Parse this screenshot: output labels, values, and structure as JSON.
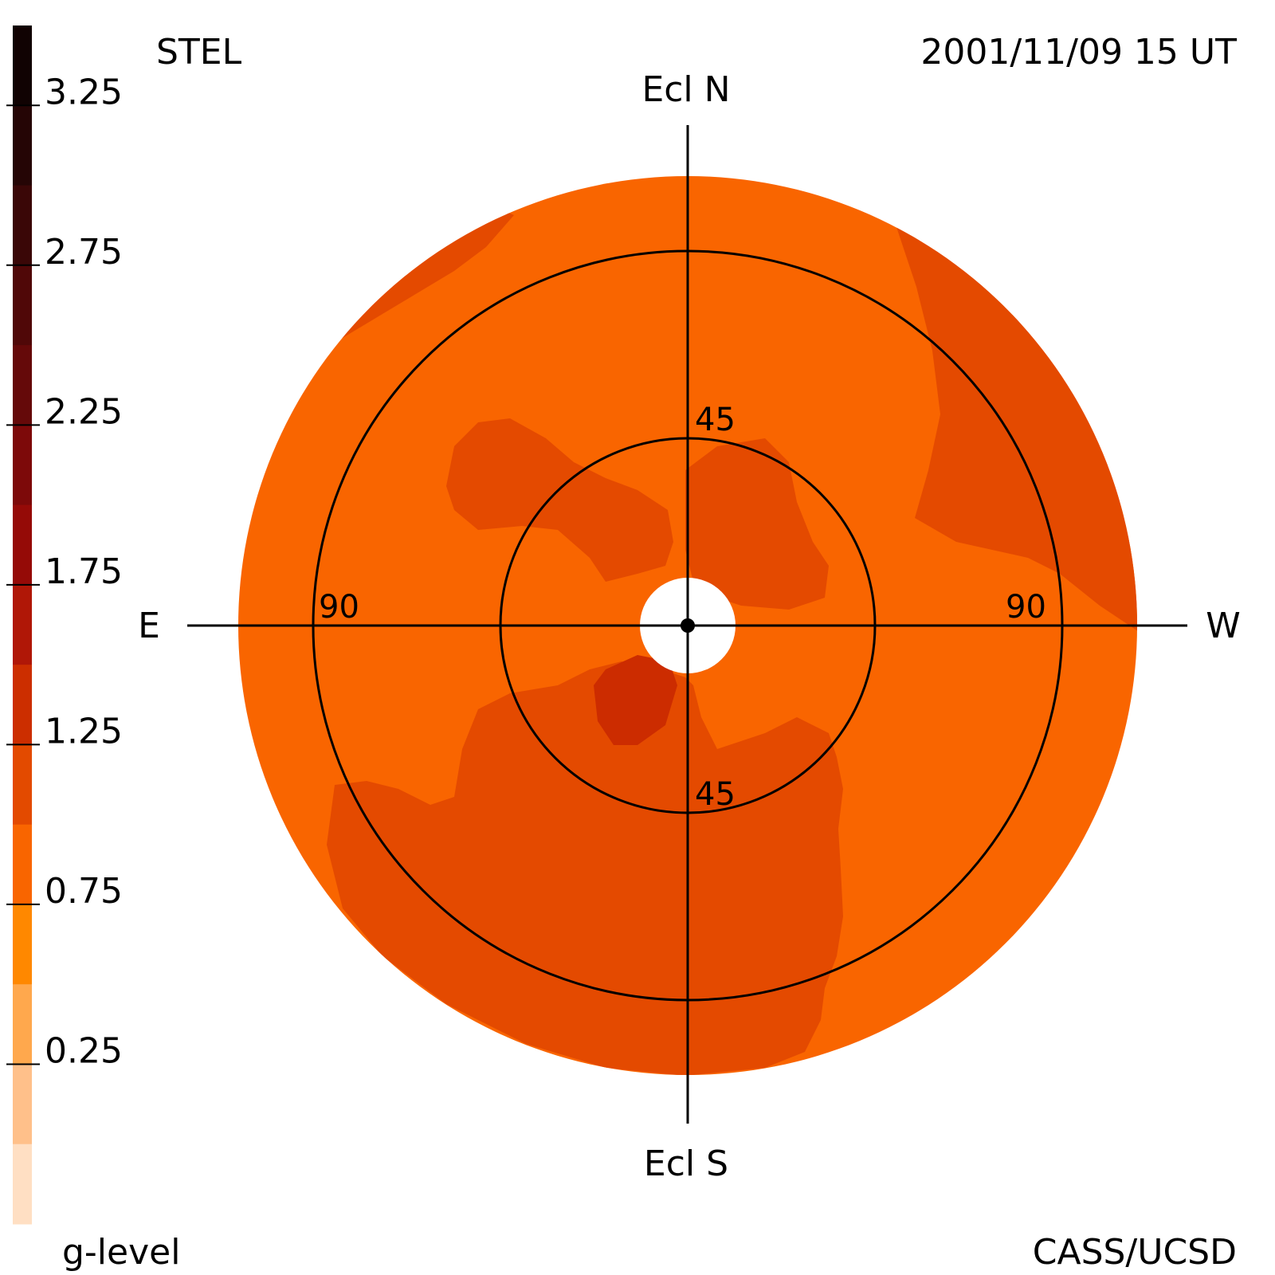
{
  "header": {
    "left_label": "STEL",
    "right_label": "2001/11/09 15 UT"
  },
  "footer": {
    "left_label": "g-level",
    "right_label": "CASS/UCSD"
  },
  "directions": {
    "north": "Ecl N",
    "south": "Ecl S",
    "east": "E",
    "west": "W"
  },
  "ring_labels": {
    "inner_top": "45",
    "inner_bottom": "45",
    "outer_left": "90",
    "outer_right": "90"
  },
  "colors": {
    "disk_base": "#f96500",
    "region_mid": "#e44a00",
    "region_high": "#cc2c00",
    "center_hole": "#ffffff",
    "lines": "#000000"
  },
  "chart_data": {
    "type": "heatmap",
    "projection": "sky map around the sun, ecliptic coordinates",
    "colorbar": {
      "title": "g-level",
      "range": [
        0,
        3.5
      ],
      "tick_labels": [
        "3.25",
        "2.75",
        "2.25",
        "1.75",
        "1.25",
        "0.75",
        "0.25"
      ],
      "tick_values": [
        3.25,
        2.75,
        2.25,
        1.75,
        1.25,
        0.75,
        0.25
      ],
      "levels": [
        {
          "from": 3.25,
          "to": 3.5,
          "color": "#100202"
        },
        {
          "from": 3.0,
          "to": 3.25,
          "color": "#250505"
        },
        {
          "from": 2.75,
          "to": 3.0,
          "color": "#3a0707"
        },
        {
          "from": 2.5,
          "to": 2.75,
          "color": "#500808"
        },
        {
          "from": 2.25,
          "to": 2.5,
          "color": "#650909"
        },
        {
          "from": 2.0,
          "to": 2.25,
          "color": "#7d0909"
        },
        {
          "from": 1.75,
          "to": 2.0,
          "color": "#950a07"
        },
        {
          "from": 1.5,
          "to": 1.75,
          "color": "#b01707"
        },
        {
          "from": 1.25,
          "to": 1.5,
          "color": "#cc2e00"
        },
        {
          "from": 1.0,
          "to": 1.25,
          "color": "#e34a00"
        },
        {
          "from": 0.75,
          "to": 1.0,
          "color": "#f96500"
        },
        {
          "from": 0.5,
          "to": 0.75,
          "color": "#ff8800"
        },
        {
          "from": 0.25,
          "to": 0.5,
          "color": "#ffa84d"
        },
        {
          "from": 0.0,
          "to": 0.25,
          "color": "#ffc08a"
        },
        {
          "from": -0.25,
          "to": 0.0,
          "color": "#ffdfc3"
        }
      ]
    },
    "elongation_rings_deg": [
      45,
      90
    ],
    "map_extent_deg": 110,
    "regions": [
      {
        "level_range": [
          0.75,
          1.0
        ],
        "description": "disk background"
      },
      {
        "level_range": [
          1.0,
          1.25
        ],
        "description": "north-west lobe"
      },
      {
        "level_range": [
          1.0,
          1.25
        ],
        "description": "north-east inner lobe"
      },
      {
        "level_range": [
          1.0,
          1.25
        ],
        "description": "south-east and south region"
      },
      {
        "level_range": [
          1.25,
          1.5
        ],
        "description": "small patch south-east of center"
      }
    ]
  }
}
